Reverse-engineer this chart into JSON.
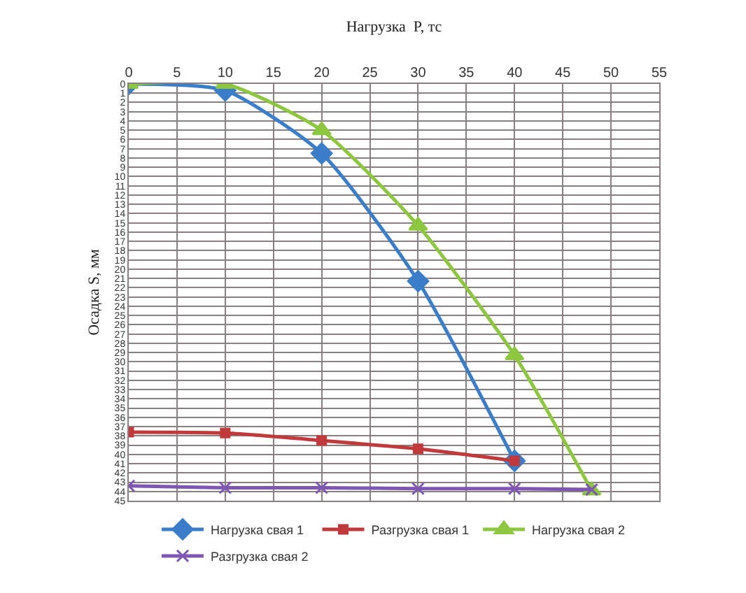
{
  "chart_data": {
    "type": "line",
    "xlabel": "Нагрузка  P, тс",
    "ylabel": "Осадка S, мм",
    "xlim": [
      0,
      55
    ],
    "xticks": [
      0,
      5,
      10,
      15,
      20,
      25,
      30,
      35,
      40,
      45,
      50,
      55
    ],
    "ylim": [
      45,
      0
    ],
    "yticks": [
      0,
      1,
      2,
      3,
      4,
      5,
      6,
      7,
      8,
      9,
      10,
      11,
      12,
      13,
      14,
      15,
      16,
      17,
      18,
      19,
      20,
      21,
      22,
      23,
      24,
      25,
      26,
      27,
      28,
      29,
      30,
      31,
      32,
      33,
      34,
      35,
      36,
      37,
      38,
      39,
      40,
      41,
      42,
      43,
      44,
      45
    ],
    "grid": true,
    "legend": "bottom",
    "series": [
      {
        "name": "Нагрузка свая 1",
        "color": "#3a7dc9",
        "marker": "diamond",
        "x": [
          0,
          10,
          20,
          30,
          40
        ],
        "values": [
          0,
          0.7,
          7.5,
          21.3,
          40.7
        ]
      },
      {
        "name": "Разгрузка свая 1",
        "color": "#c0393b",
        "marker": "square",
        "x": [
          0,
          10,
          20,
          30,
          40
        ],
        "values": [
          37.6,
          37.7,
          38.5,
          39.4,
          40.7
        ]
      },
      {
        "name": "Нагрузка свая 2",
        "color": "#8dc63f",
        "marker": "triangle",
        "x": [
          0,
          10,
          20,
          30,
          40,
          48
        ],
        "values": [
          0,
          0,
          5,
          15.3,
          29.3,
          43.9
        ]
      },
      {
        "name": "Разгрузка свая 2",
        "color": "#7e57b2",
        "marker": "cross",
        "x": [
          0,
          10,
          20,
          30,
          40,
          48
        ],
        "values": [
          43.4,
          43.6,
          43.6,
          43.7,
          43.7,
          43.8
        ]
      }
    ]
  }
}
